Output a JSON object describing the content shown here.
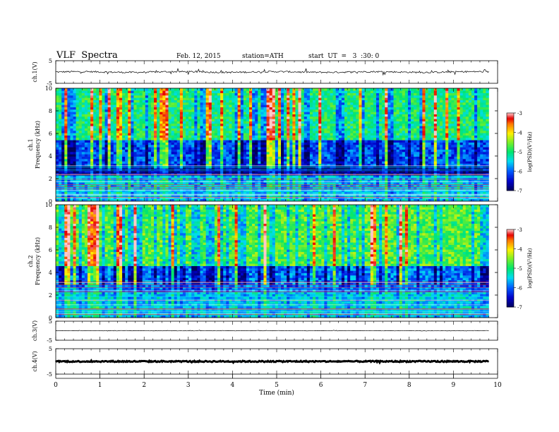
{
  "header": {
    "title": "VLF  Spectra",
    "date": "Feb. 12, 2015",
    "station": "station=ATH",
    "start": "start  UT  =   3  :30: 0"
  },
  "chart_data": [
    {
      "type": "line",
      "name": "ch1-waveform",
      "ylabel": "ch.1(V)",
      "ylim": [
        -5,
        5
      ],
      "yticks": [
        "5",
        "-5"
      ],
      "xlim": [
        0,
        10
      ],
      "baseline": 0,
      "amplitude": 0.35,
      "spike_amplitude": 1.4
    },
    {
      "type": "heatmap",
      "name": "ch1-spectrogram",
      "ylabel": "Frequency (kHz)",
      "channel_label": "ch.1",
      "ylim": [
        0,
        10
      ],
      "yticks": [
        "0",
        "2",
        "4",
        "6",
        "8",
        "10"
      ],
      "xlim": [
        0,
        9.8
      ],
      "colorbar": {
        "label": "log(PSD)(V²/Hz)",
        "range": [
          -7,
          -3
        ],
        "ticks": [
          "-3",
          "-4",
          "-5",
          "-6",
          "-7"
        ]
      },
      "bands": [
        {
          "from": 0,
          "to": 2.2,
          "level": -5.6
        },
        {
          "from": 2.2,
          "to": 3.2,
          "level": -6.7
        },
        {
          "from": 3.2,
          "to": 5.5,
          "level": -6.1
        },
        {
          "from": 5.5,
          "to": 10,
          "level": -5.0
        }
      ]
    },
    {
      "type": "heatmap",
      "name": "ch2-spectrogram",
      "ylabel": "Frequency (kHz)",
      "channel_label": "ch.2",
      "ylim": [
        0,
        10
      ],
      "yticks": [
        "0",
        "2",
        "4",
        "6",
        "8",
        "10"
      ],
      "xlim": [
        0,
        9.8
      ],
      "colorbar": {
        "label": "log(PSD)(V²/Hz)",
        "range": [
          -7,
          -3
        ],
        "ticks": [
          "-3",
          "-4",
          "-5",
          "-6",
          "-7"
        ]
      },
      "bands": [
        {
          "from": 0,
          "to": 2.2,
          "level": -5.5
        },
        {
          "from": 2.2,
          "to": 4.5,
          "level": -5.9
        },
        {
          "from": 4.5,
          "to": 10,
          "level": -4.7
        }
      ]
    },
    {
      "type": "line",
      "name": "ch3-waveform",
      "ylabel": "ch.3(V)",
      "ylim": [
        -5,
        5
      ],
      "yticks": [
        "5",
        "-5"
      ],
      "xlim": [
        0,
        10
      ],
      "baseline": 0,
      "amplitude": 0.12,
      "spike_amplitude": 0.2
    },
    {
      "type": "line",
      "name": "ch4-waveform",
      "ylabel": "ch.4(V)",
      "ylim": [
        -5,
        5
      ],
      "yticks": [
        "5",
        "-5"
      ],
      "xlim": [
        0,
        10
      ],
      "baseline": 0,
      "amplitude": 0.25,
      "spike_amplitude": 0.25
    }
  ],
  "x_axis": {
    "label": "Time  (min)",
    "ticks": [
      "0",
      "1",
      "2",
      "3",
      "4",
      "5",
      "6",
      "7",
      "8",
      "9",
      "10"
    ],
    "range": [
      0,
      10
    ]
  }
}
